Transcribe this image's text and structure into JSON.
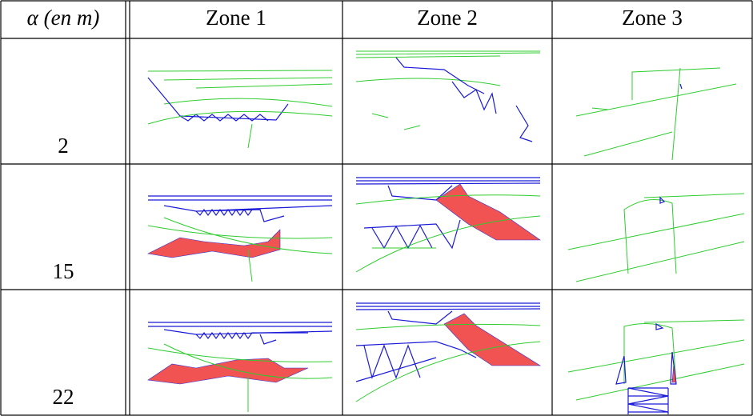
{
  "table": {
    "header": [
      "α (en m)",
      "Zone 1",
      "Zone 2",
      "Zone 3"
    ],
    "rows": [
      2,
      15,
      22
    ]
  }
}
